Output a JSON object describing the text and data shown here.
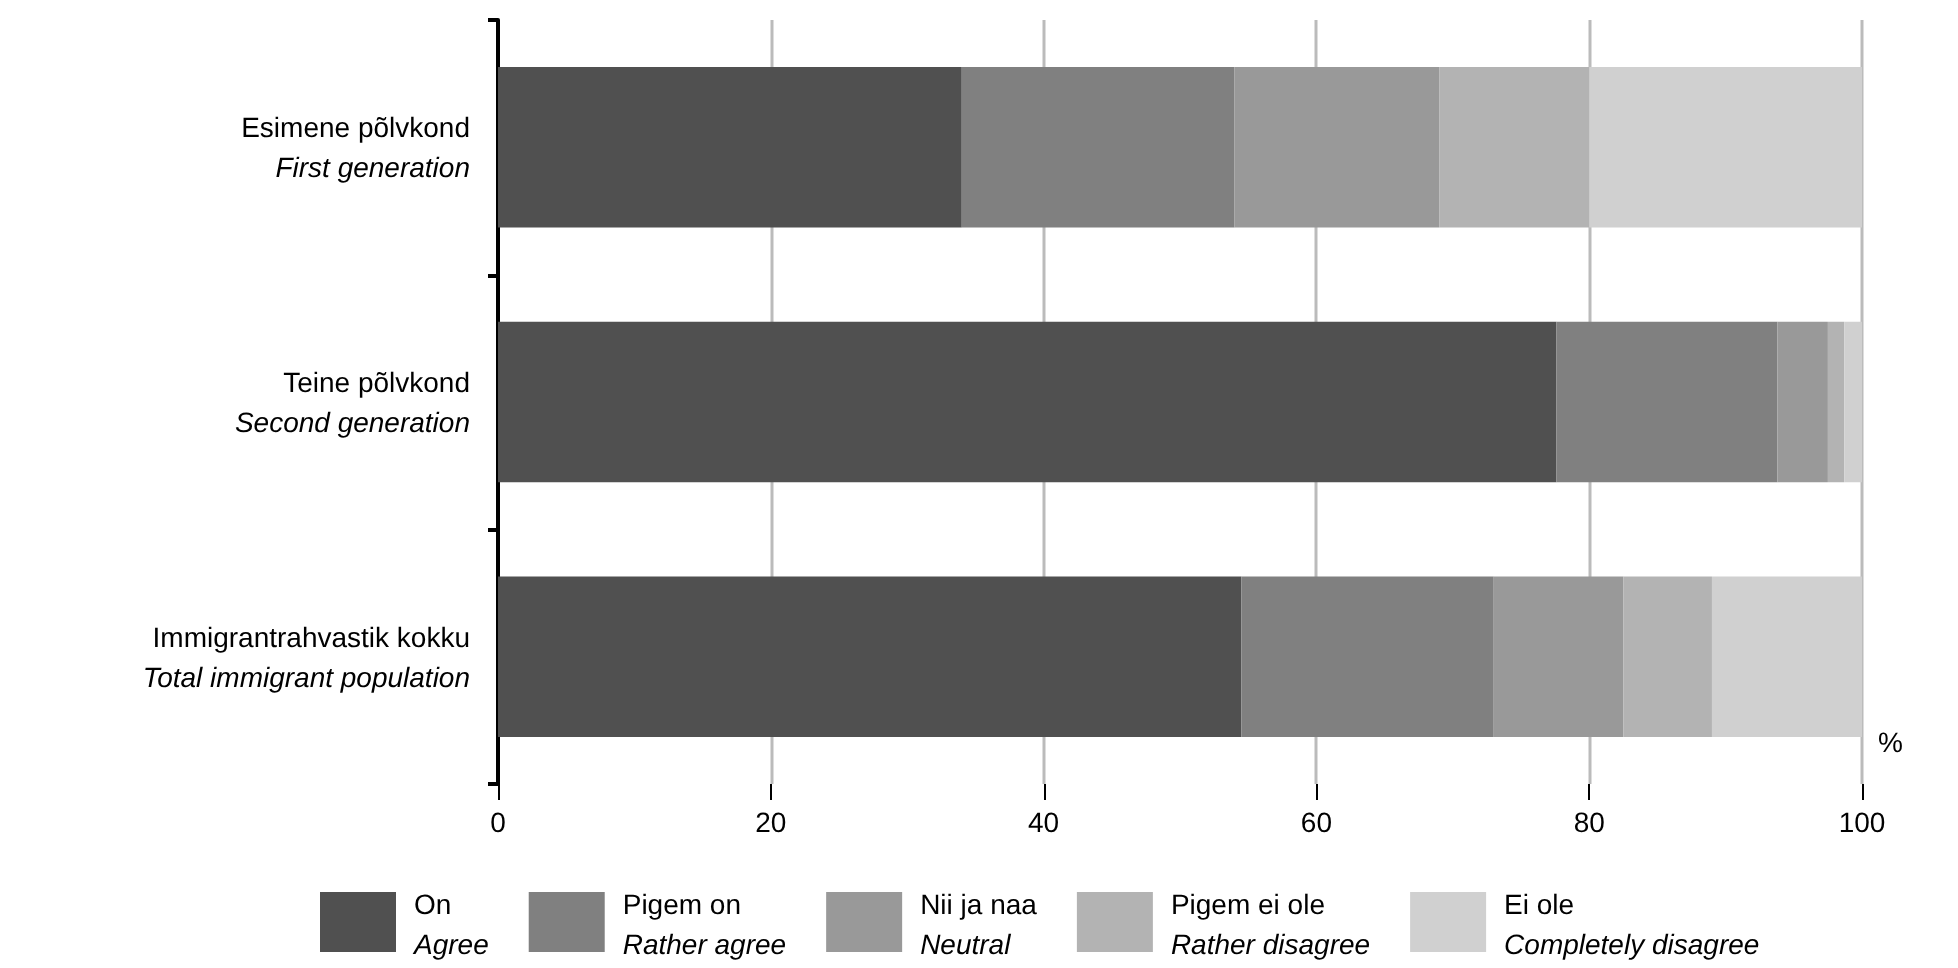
{
  "chart_data": {
    "type": "bar",
    "orientation": "horizontal",
    "stacked": true,
    "xlabel": "%",
    "categories": [
      "Esimene põlvkond\nFirst generation",
      "Teine põlvkond\nSecond generation",
      "Immigrantrahvastik kokku\nTotal immigrant population"
    ],
    "series": [
      {
        "name": "On\nAgree",
        "color": "#505050",
        "values": [
          34,
          77.6,
          54.5
        ]
      },
      {
        "name": "Pigem on\nRather agree",
        "color": "#808080",
        "values": [
          20,
          16.2,
          18.5
        ]
      },
      {
        "name": "Nii ja naa\nNeutral",
        "color": "#999999",
        "values": [
          15,
          3.7,
          9.5
        ]
      },
      {
        "name": "Pigem ei ole\nRather disagree",
        "color": "#b3b3b3",
        "values": [
          11,
          1.2,
          6.5
        ]
      },
      {
        "name": "Ei ole\nCompletely disagree",
        "color": "#d0d0d0",
        "values": [
          20,
          1.3,
          11
        ]
      }
    ],
    "xlim": [
      0,
      100
    ],
    "xticks": [
      0,
      20,
      40,
      60,
      80,
      100
    ],
    "grid": "x",
    "legend": "bottom"
  }
}
